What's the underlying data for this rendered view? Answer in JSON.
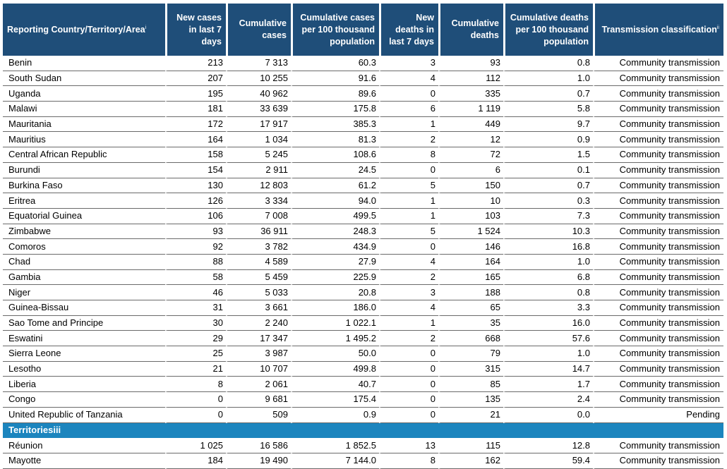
{
  "headers": {
    "country": "Reporting Country/Territory/Area",
    "country_sup": "i",
    "new_cases": "New cases in last 7 days",
    "cum_cases": "Cumulative cases",
    "cum_cases_100k": "Cumulative cases per 100 thousand population",
    "new_deaths": "New deaths in last 7 days",
    "cum_deaths": "Cumulative deaths",
    "cum_deaths_100k": "Cumulative deaths per 100 thousand population",
    "transmission": "Transmission classification",
    "transmission_sup": "ii"
  },
  "rows": [
    [
      "Benin",
      "213",
      "7 313",
      "60.3",
      "3",
      "93",
      "0.8",
      "Community transmission"
    ],
    [
      "South Sudan",
      "207",
      "10 255",
      "91.6",
      "4",
      "112",
      "1.0",
      "Community transmission"
    ],
    [
      "Uganda",
      "195",
      "40 962",
      "89.6",
      "0",
      "335",
      "0.7",
      "Community transmission"
    ],
    [
      "Malawi",
      "181",
      "33 639",
      "175.8",
      "6",
      "1 119",
      "5.8",
      "Community transmission"
    ],
    [
      "Mauritania",
      "172",
      "17 917",
      "385.3",
      "1",
      "449",
      "9.7",
      "Community transmission"
    ],
    [
      "Mauritius",
      "164",
      "1 034",
      "81.3",
      "2",
      "12",
      "0.9",
      "Community transmission"
    ],
    [
      "Central African Republic",
      "158",
      "5 245",
      "108.6",
      "8",
      "72",
      "1.5",
      "Community transmission"
    ],
    [
      "Burundi",
      "154",
      "2 911",
      "24.5",
      "0",
      "6",
      "0.1",
      "Community transmission"
    ],
    [
      "Burkina Faso",
      "130",
      "12 803",
      "61.2",
      "5",
      "150",
      "0.7",
      "Community transmission"
    ],
    [
      "Eritrea",
      "126",
      "3 334",
      "94.0",
      "1",
      "10",
      "0.3",
      "Community transmission"
    ],
    [
      "Equatorial Guinea",
      "106",
      "7 008",
      "499.5",
      "1",
      "103",
      "7.3",
      "Community transmission"
    ],
    [
      "Zimbabwe",
      "93",
      "36 911",
      "248.3",
      "5",
      "1 524",
      "10.3",
      "Community transmission"
    ],
    [
      "Comoros",
      "92",
      "3 782",
      "434.9",
      "0",
      "146",
      "16.8",
      "Community transmission"
    ],
    [
      "Chad",
      "88",
      "4 589",
      "27.9",
      "4",
      "164",
      "1.0",
      "Community transmission"
    ],
    [
      "Gambia",
      "58",
      "5 459",
      "225.9",
      "2",
      "165",
      "6.8",
      "Community transmission"
    ],
    [
      "Niger",
      "46",
      "5 033",
      "20.8",
      "3",
      "188",
      "0.8",
      "Community transmission"
    ],
    [
      "Guinea-Bissau",
      "31",
      "3 661",
      "186.0",
      "4",
      "65",
      "3.3",
      "Community transmission"
    ],
    [
      "Sao Tome and Principe",
      "30",
      "2 240",
      "1 022.1",
      "1",
      "35",
      "16.0",
      "Community transmission"
    ],
    [
      "Eswatini",
      "29",
      "17 347",
      "1 495.2",
      "2",
      "668",
      "57.6",
      "Community transmission"
    ],
    [
      "Sierra Leone",
      "25",
      "3 987",
      "50.0",
      "0",
      "79",
      "1.0",
      "Community transmission"
    ],
    [
      "Lesotho",
      "21",
      "10 707",
      "499.8",
      "0",
      "315",
      "14.7",
      "Community transmission"
    ],
    [
      "Liberia",
      "8",
      "2 061",
      "40.7",
      "0",
      "85",
      "1.7",
      "Community transmission"
    ],
    [
      "Congo",
      "0",
      "9 681",
      "175.4",
      "0",
      "135",
      "2.4",
      "Community transmission"
    ],
    [
      "United Republic of Tanzania",
      "0",
      "509",
      "0.9",
      "0",
      "21",
      "0.0",
      "Pending"
    ]
  ],
  "territories_label": "Territoriesiii",
  "territory_rows": [
    [
      "Réunion",
      "1 025",
      "16 586",
      "1 852.5",
      "13",
      "115",
      "12.8",
      "Community transmission"
    ],
    [
      "Mayotte",
      "184",
      "19 490",
      "7 144.0",
      "8",
      "162",
      "59.4",
      "Community transmission"
    ]
  ]
}
